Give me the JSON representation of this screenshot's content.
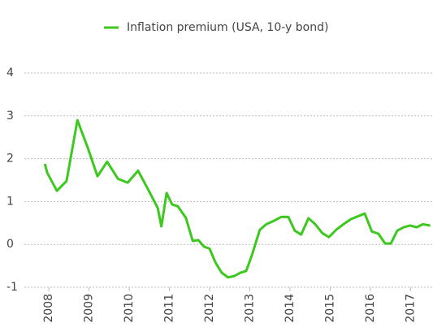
{
  "chart_data": {
    "type": "line",
    "x": [
      2007.9,
      2007.96,
      2008.2,
      2008.44,
      2008.71,
      2008.97,
      2009.21,
      2009.45,
      2009.72,
      2009.96,
      2010.22,
      2010.46,
      2010.71,
      2010.8,
      2010.93,
      2011.07,
      2011.21,
      2011.41,
      2011.58,
      2011.72,
      2011.86,
      2012.0,
      2012.14,
      2012.3,
      2012.46,
      2012.61,
      2012.77,
      2012.91,
      2013.05,
      2013.25,
      2013.41,
      2013.6,
      2013.78,
      2013.96,
      2014.12,
      2014.28,
      2014.46,
      2014.63,
      2014.81,
      2014.97,
      2015.15,
      2015.33,
      2015.52,
      2015.7,
      2015.86,
      2016.04,
      2016.2,
      2016.37,
      2016.51,
      2016.67,
      2016.83,
      2016.99,
      2017.15,
      2017.31,
      2017.49
    ],
    "series": [
      {
        "name": "Inflation premium (USA, 10-y bond)",
        "color": "#3cc81e",
        "values": [
          1.88,
          1.67,
          1.25,
          1.48,
          2.9,
          2.25,
          1.59,
          1.93,
          1.53,
          1.44,
          1.72,
          1.3,
          0.85,
          0.42,
          1.2,
          0.93,
          0.89,
          0.62,
          0.08,
          0.1,
          -0.05,
          -0.1,
          -0.41,
          -0.66,
          -0.77,
          -0.74,
          -0.66,
          -0.62,
          -0.26,
          0.34,
          0.47,
          0.55,
          0.64,
          0.64,
          0.32,
          0.23,
          0.61,
          0.47,
          0.26,
          0.17,
          0.34,
          0.47,
          0.59,
          0.66,
          0.72,
          0.3,
          0.25,
          0.02,
          0.02,
          0.32,
          0.4,
          0.44,
          0.4,
          0.47,
          0.44
        ]
      }
    ],
    "xlim": [
      2007.39,
      2017.56
    ],
    "xticks": [
      2008,
      2009,
      2010,
      2011,
      2012,
      2013,
      2014,
      2015,
      2016,
      2017
    ],
    "ylim": [
      -1,
      4
    ],
    "yticks": [
      -1,
      0,
      1,
      2,
      3,
      4
    ],
    "grid": true,
    "legend": "top"
  }
}
